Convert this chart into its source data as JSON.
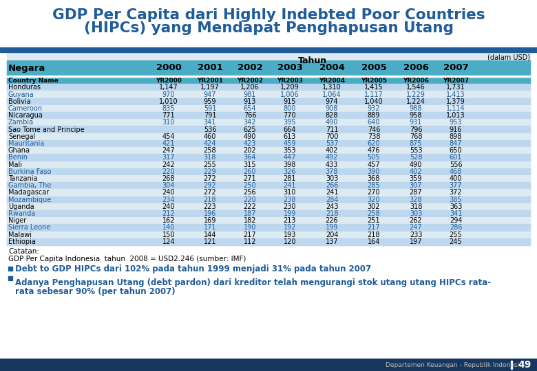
{
  "title_line1": "GDP Per Capita dari Highly Indebted Poor Countries",
  "title_line2": "(HIPCs) yang Mendapat Penghapusan Utang",
  "title_color": "#1F5C99",
  "subtitle_usd": "(dalam USD)",
  "header_tahun": "Tahun",
  "header_negara": "Negara",
  "header_years": [
    "2000",
    "2001",
    "2002",
    "2003",
    "2004",
    "2005",
    "2006",
    "2007"
  ],
  "countries": [
    "Country Name",
    "Honduras",
    "Guyana",
    "Bolivia",
    "Cameroon",
    "Nicaragua",
    "Zambia",
    "Sao Tome and Principe",
    "Senegal",
    "Mauritania",
    "Ghana",
    "Benin",
    "Mali",
    "Burkina Faso",
    "Tanzania",
    "Gambia, The",
    "Madagascar",
    "Mozambique",
    "Uganda",
    "Rwanda",
    "Niger",
    "Sierra Leone",
    "Malawi",
    "Ethiopia"
  ],
  "data": [
    [
      "YR2000",
      "YR2001",
      "YR2002",
      "YR2003",
      "YR2004",
      "YR2005",
      "YR2006",
      "YR2007"
    ],
    [
      1147,
      1197,
      1206,
      1209,
      1310,
      1415,
      1546,
      1731
    ],
    [
      970,
      947,
      981,
      1006,
      1064,
      1117,
      1229,
      1413
    ],
    [
      1010,
      959,
      913,
      915,
      974,
      1040,
      1224,
      1379
    ],
    [
      835,
      591,
      654,
      800,
      908,
      932,
      988,
      1114
    ],
    [
      771,
      791,
      766,
      770,
      828,
      889,
      958,
      1013
    ],
    [
      310,
      341,
      342,
      395,
      490,
      640,
      931,
      953
    ],
    [
      "",
      536,
      625,
      664,
      711,
      746,
      796,
      916
    ],
    [
      454,
      460,
      490,
      613,
      700,
      738,
      768,
      898
    ],
    [
      421,
      424,
      423,
      459,
      537,
      620,
      875,
      847
    ],
    [
      247,
      258,
      202,
      353,
      402,
      476,
      553,
      650
    ],
    [
      317,
      318,
      364,
      447,
      492,
      505,
      528,
      601
    ],
    [
      242,
      255,
      315,
      398,
      433,
      457,
      490,
      556
    ],
    [
      220,
      229,
      260,
      326,
      378,
      390,
      402,
      468
    ],
    [
      268,
      272,
      271,
      281,
      303,
      368,
      359,
      400
    ],
    [
      304,
      292,
      250,
      241,
      266,
      285,
      307,
      377
    ],
    [
      240,
      272,
      256,
      310,
      241,
      270,
      287,
      372
    ],
    [
      234,
      218,
      220,
      238,
      284,
      320,
      328,
      385
    ],
    [
      240,
      223,
      222,
      230,
      243,
      302,
      318,
      363
    ],
    [
      212,
      196,
      187,
      199,
      218,
      258,
      303,
      341
    ],
    [
      162,
      169,
      182,
      213,
      226,
      251,
      262,
      294
    ],
    [
      140,
      171,
      190,
      192,
      199,
      217,
      247,
      286
    ],
    [
      150,
      144,
      217,
      193,
      204,
      218,
      233,
      255
    ],
    [
      124,
      121,
      112,
      120,
      137,
      164,
      197,
      245
    ]
  ],
  "catatan_line1": "Catatan:",
  "catatan_line2": "GDP Per Capita Indonesia  tahun  2008 = USD2.246 (sumber: IMF)",
  "bullet1": "Debt to GDP HIPCs dari 102% pada tahun 1999 menjadi 31% pada tahun 2007",
  "bullet2a": "Adanya Penghapusan Utang (debt pardon) dari kreditor telah mengurangi stok utang utang HIPCs rata-",
  "bullet2b": "rata sebesar 90% (per tahun 2007)",
  "footer_left": "Departemen Keuangan - Republik Indonesia",
  "footer_page": "49",
  "bg_color": "#FFFFFF",
  "table_bg": "#DEEAF1",
  "table_header_bg": "#4BACC6",
  "table_row_alt_bg": "#BDD7EE",
  "blue_line_color": "#1F5C99",
  "bullet_color": "#1F5C99",
  "dark_blue_bar": "#17375E",
  "highlight_rows": [
    2,
    4,
    6,
    9,
    11,
    13,
    15,
    17,
    19,
    21
  ]
}
